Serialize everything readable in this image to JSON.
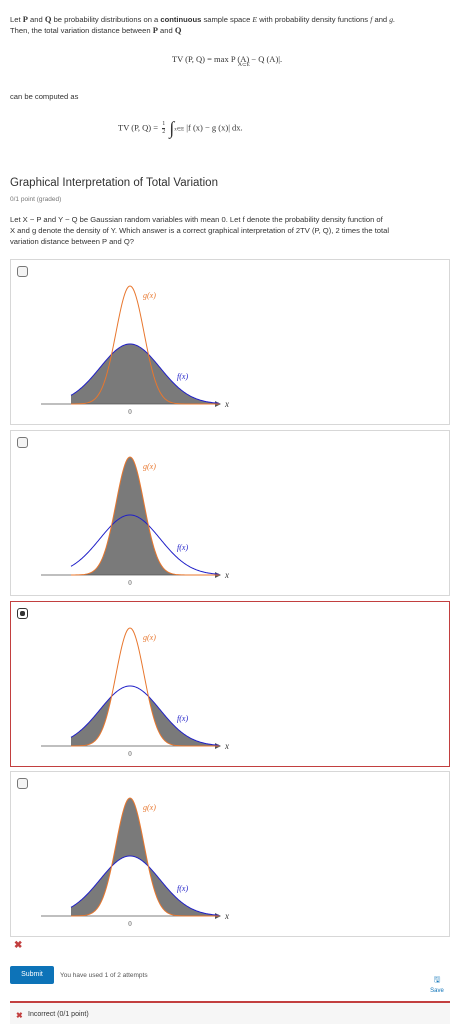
{
  "intro": {
    "p1": "Let",
    "P": "P",
    "and": "and",
    "Q": "Q",
    "p2": "be probability distributions on a",
    "continuous": "continuous",
    "p3": "sample space",
    "E": "E",
    "p4": "with probability density functions",
    "f": "f",
    "p5": "and",
    "g": "g.",
    "line2": "Then, the total variation distance between",
    "line2b": "and",
    "formula1_lhs": "TV (P, Q) = max",
    "formula1_rhs": "P (A) − Q (A)|.",
    "formula1_sub": "A⊂E",
    "computed_as": "can be computed as",
    "formula2_lhs": "TV (P, Q) =",
    "frac_num": "1",
    "frac_den": "2",
    "formula2_sub": "x∈E",
    "formula2_rhs": "|f (x) − g (x)| dx."
  },
  "question": {
    "title": "Graphical Interpretation of Total Variation",
    "points": "0/1 point (graded)",
    "text1": "Let X ~ P and Y ~ Q be Gaussian random variables with mean 0. Let f denote the probability density function of",
    "text2": "X and g denote the density of Y. Which answer is a correct graphical interpretation of 2TV (P, Q), 2 times the total",
    "text3": "variation distance between P and Q?"
  },
  "graph_labels": {
    "g": "g(x)",
    "f": "f(x)",
    "x": "x",
    "zero": "0"
  },
  "colors": {
    "orange": "#e8772e",
    "blue": "#1f1fc8",
    "shade": "#7a7a7a",
    "submit": "#0d73b8",
    "error": "#c23f3f"
  },
  "options": [
    {
      "shading": "area under f",
      "selected": false
    },
    {
      "shading": "area under g",
      "selected": false
    },
    {
      "shading": "area between f and g, outer tails",
      "selected": true
    },
    {
      "shading": "area between f and g, entire",
      "selected": false
    }
  ],
  "footer": {
    "submit": "Submit",
    "attempts": "You have used 1 of 2 attempts",
    "save": "Save",
    "result": "Incorrect (0/1 point)"
  }
}
